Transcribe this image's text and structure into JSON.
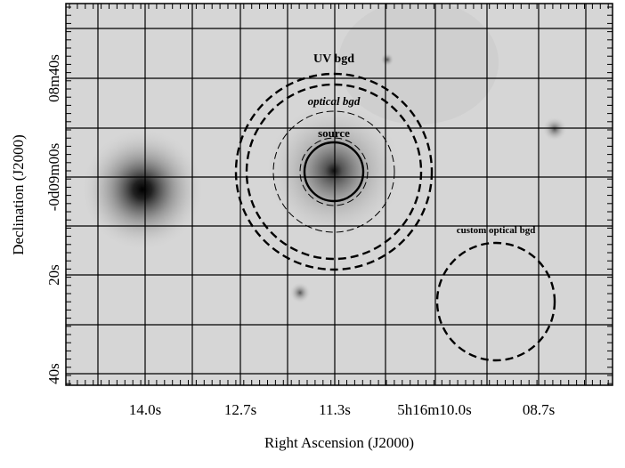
{
  "image": {
    "annotations": {
      "uv": "UV bgd",
      "optical": "optical bgd",
      "source": "source",
      "custom": "custom optical bgd"
    }
  },
  "x_axis": {
    "label": "Right Ascension (J2000)",
    "ticks": [
      "14.0s",
      "12.7s",
      "11.3s",
      "5h16m10.0s",
      "08.7s"
    ]
  },
  "y_axis": {
    "label": "Declination (J2000)",
    "ticks": [
      "08m40s",
      "-0d09m00s",
      "20s",
      "40s"
    ]
  }
}
